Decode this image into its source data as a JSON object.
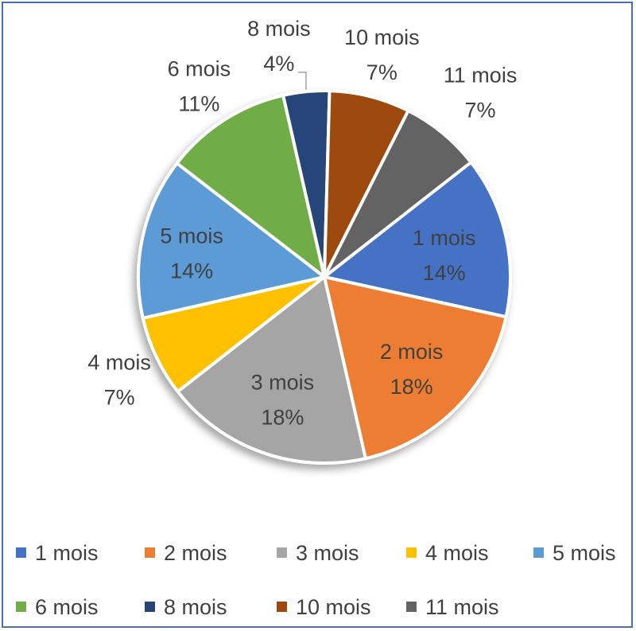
{
  "chart_data": {
    "type": "pie",
    "title": "",
    "legend_position": "bottom",
    "slices": [
      {
        "label": "1 mois",
        "pct": "14%",
        "value": 14,
        "color": "#4472C4"
      },
      {
        "label": "2 mois",
        "pct": "18%",
        "value": 18,
        "color": "#ED7D31"
      },
      {
        "label": "3 mois",
        "pct": "18%",
        "value": 18,
        "color": "#A5A5A5"
      },
      {
        "label": "4 mois",
        "pct": "7%",
        "value": 7,
        "color": "#FFC000"
      },
      {
        "label": "5 mois",
        "pct": "14%",
        "value": 14,
        "color": "#5B9BD5"
      },
      {
        "label": "6 mois",
        "pct": "11%",
        "value": 11,
        "color": "#70AD47"
      },
      {
        "label": "8 mois",
        "pct": "4%",
        "value": 4,
        "color": "#264478"
      },
      {
        "label": "10 mois",
        "pct": "7%",
        "value": 7,
        "color": "#9E480E"
      },
      {
        "label": "11 mois",
        "pct": "7%",
        "value": 7,
        "color": "#636363"
      }
    ]
  }
}
